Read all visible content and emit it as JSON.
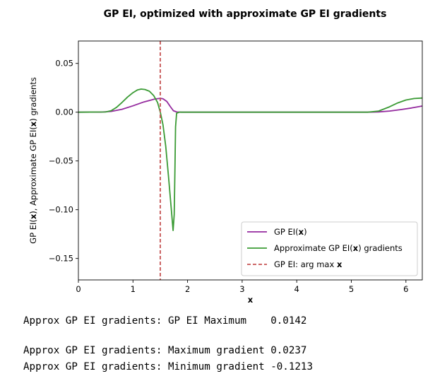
{
  "chart_data": {
    "type": "line",
    "title": "GP EI, optimized with approximate GP EI gradients",
    "xlabel": "x",
    "ylabel_parts": [
      "GP EI(",
      "x",
      "), Approximate GP EI(",
      "x",
      ") gradients"
    ],
    "xlim": [
      0,
      6.3
    ],
    "ylim": [
      -0.172,
      0.073
    ],
    "xticks": [
      0,
      1,
      2,
      3,
      4,
      5,
      6
    ],
    "yticks": [
      0.05,
      0.0,
      -0.05,
      -0.1,
      -0.15
    ],
    "ytick_labels": [
      "0.05",
      "0.00",
      "−0.05",
      "−0.10",
      "−0.15"
    ],
    "grid": false,
    "legend_position": "lower-right",
    "series": [
      {
        "name_parts": [
          "GP EI(",
          "x",
          ")"
        ],
        "color": "#942a9e",
        "style": "solid",
        "points": [
          [
            0,
            0
          ],
          [
            0.4,
            0.0001
          ],
          [
            0.6,
            0.0008
          ],
          [
            0.8,
            0.003
          ],
          [
            1.0,
            0.0065
          ],
          [
            1.2,
            0.0105
          ],
          [
            1.4,
            0.0135
          ],
          [
            1.5,
            0.0142
          ],
          [
            1.55,
            0.0137
          ],
          [
            1.62,
            0.011
          ],
          [
            1.68,
            0.006
          ],
          [
            1.74,
            0.0015
          ],
          [
            1.8,
            0.0002
          ],
          [
            1.9,
            0
          ],
          [
            5.3,
            0
          ],
          [
            5.5,
            0.0003
          ],
          [
            5.7,
            0.0012
          ],
          [
            5.9,
            0.0026
          ],
          [
            6.1,
            0.0043
          ],
          [
            6.3,
            0.0063
          ]
        ]
      },
      {
        "name_parts": [
          "Approximate GP EI(",
          "x",
          ") gradients"
        ],
        "color": "#3b9b35",
        "style": "solid",
        "points": [
          [
            0,
            0
          ],
          [
            0.5,
            0.0002
          ],
          [
            0.6,
            0.0015
          ],
          [
            0.7,
            0.005
          ],
          [
            0.8,
            0.01
          ],
          [
            0.9,
            0.0155
          ],
          [
            1.0,
            0.02
          ],
          [
            1.08,
            0.0228
          ],
          [
            1.15,
            0.0237
          ],
          [
            1.22,
            0.0233
          ],
          [
            1.3,
            0.0215
          ],
          [
            1.38,
            0.017
          ],
          [
            1.45,
            0.01
          ],
          [
            1.5,
            0.0
          ],
          [
            1.55,
            -0.013
          ],
          [
            1.6,
            -0.035
          ],
          [
            1.65,
            -0.065
          ],
          [
            1.7,
            -0.098
          ],
          [
            1.735,
            -0.1213
          ],
          [
            1.755,
            -0.105
          ],
          [
            1.77,
            -0.055
          ],
          [
            1.78,
            -0.015
          ],
          [
            1.8,
            -0.001
          ],
          [
            1.85,
            0
          ],
          [
            5.3,
            0
          ],
          [
            5.5,
            0.0012
          ],
          [
            5.7,
            0.0055
          ],
          [
            5.85,
            0.0095
          ],
          [
            6.0,
            0.0125
          ],
          [
            6.15,
            0.014
          ],
          [
            6.3,
            0.0145
          ]
        ]
      },
      {
        "name_parts": [
          "GP EI: arg max ",
          "x"
        ],
        "color": "#c65353",
        "style": "dashed",
        "vline_x": 1.5
      }
    ]
  },
  "output_lines": [
    "Approx GP EI gradients: GP EI Maximum    0.0142",
    "",
    "Approx GP EI gradients: Maximum gradient 0.0237",
    "Approx GP EI gradients: Minimum gradient -0.1213"
  ]
}
